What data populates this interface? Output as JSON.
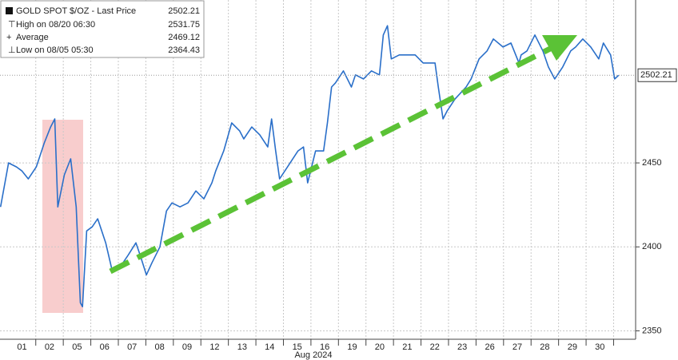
{
  "chart_data": {
    "type": "line",
    "xlabel": "Aug 2024",
    "series": [
      {
        "name": "GOLD SPOT $/OZ - Last Price",
        "color": "#2a6fc9",
        "x": [
          -0.78,
          -0.49,
          -0.2,
          0,
          0.23,
          0.52,
          0.81,
          1.04,
          1.19,
          1.3,
          1.54,
          1.77,
          1.97,
          2.12,
          2.2,
          2.35,
          2.55,
          2.75,
          3.04,
          3.28,
          3.57,
          3.86,
          4.14,
          4.29,
          4.52,
          4.72,
          5.01,
          5.25,
          5.45,
          5.74,
          6.03,
          6.32,
          6.61,
          6.9,
          7.04,
          7.33,
          7.62,
          7.91,
          8.06,
          8.35,
          8.64,
          8.93,
          9.07,
          9.22,
          9.36,
          9.65,
          10.03,
          10.23,
          10.38,
          10.67,
          10.96,
          11.1,
          11.25,
          11.39,
          11.68,
          11.97,
          12.12,
          12.41,
          12.7,
          12.99,
          13.13,
          13.28,
          13.42,
          13.71,
          14.12,
          14.29,
          14.58,
          15.01,
          15.13,
          15.3,
          15.45,
          15.74,
          16.14,
          16.32,
          16.61,
          16.9,
          17.13,
          17.48,
          17.77,
          18.06,
          18.14,
          18.35,
          18.64,
          18.93,
          19.13,
          19.36,
          19.65,
          19.94,
          20.12,
          20.38,
          20.67,
          20.96,
          21.13,
          21.39,
          21.54,
          21.68
        ],
        "values": [
          2423.8,
          2450,
          2447.6,
          2445.2,
          2440.5,
          2447.6,
          2461.9,
          2471.4,
          2476.2,
          2423.8,
          2442.9,
          2452.4,
          2423.8,
          2366.7,
          2364.4,
          2409.5,
          2411.9,
          2416.7,
          2402.4,
          2385.7,
          2388.1,
          2395.2,
          2402.4,
          2395.2,
          2383.3,
          2390.5,
          2400,
          2421.4,
          2426.2,
          2423.8,
          2426.2,
          2433.3,
          2428.6,
          2438.1,
          2445.2,
          2457.1,
          2473.8,
          2469,
          2464.3,
          2471.4,
          2466.7,
          2459.5,
          2476.2,
          2457.1,
          2440.5,
          2447.6,
          2457.1,
          2459.5,
          2438.1,
          2457.1,
          2457.1,
          2473.8,
          2495.2,
          2497.6,
          2504.8,
          2495.2,
          2502.4,
          2500,
          2504.8,
          2502.4,
          2526.2,
          2531.7,
          2511.9,
          2514.3,
          2514.3,
          2514.3,
          2509.5,
          2509.5,
          2495.2,
          2476.2,
          2481,
          2488.1,
          2495.2,
          2500,
          2511.9,
          2516.7,
          2523.8,
          2519,
          2521.4,
          2509.5,
          2514.3,
          2516.7,
          2526.2,
          2516.7,
          2507.1,
          2500,
          2507.1,
          2516.7,
          2519,
          2523.8,
          2519,
          2511.9,
          2521.4,
          2514.3,
          2500,
          2502.2
        ]
      }
    ],
    "legend_stats": [
      {
        "label": "High on 08/20 06:30",
        "value": 2531.75
      },
      {
        "label": "Average",
        "value": 2469.12
      },
      {
        "label": "Low on 08/05 05:30",
        "value": 2364.43
      }
    ],
    "last_price": 2502.21,
    "xlim": [
      -0.8,
      22.3
    ],
    "xticks": [
      {
        "value": 0,
        "label": "01"
      },
      {
        "value": 1,
        "label": "02"
      },
      {
        "value": 2,
        "label": "05"
      },
      {
        "value": 3,
        "label": "06"
      },
      {
        "value": 4,
        "label": "07"
      },
      {
        "value": 5,
        "label": "08"
      },
      {
        "value": 6,
        "label": "09"
      },
      {
        "value": 7,
        "label": "12"
      },
      {
        "value": 8,
        "label": "13"
      },
      {
        "value": 9,
        "label": "14"
      },
      {
        "value": 10,
        "label": "15"
      },
      {
        "value": 11,
        "label": "16"
      },
      {
        "value": 12,
        "label": "19"
      },
      {
        "value": 13,
        "label": "20"
      },
      {
        "value": 14,
        "label": "21"
      },
      {
        "value": 15,
        "label": "22"
      },
      {
        "value": 16,
        "label": "23"
      },
      {
        "value": 17,
        "label": "26"
      },
      {
        "value": 18,
        "label": "27"
      },
      {
        "value": 19,
        "label": "28"
      },
      {
        "value": 20,
        "label": "29"
      },
      {
        "value": 21,
        "label": "30"
      }
    ],
    "ylim": [
      2345,
      2547
    ],
    "yticks": [
      2350,
      2400,
      2450
    ],
    "grid": true
  }
}
